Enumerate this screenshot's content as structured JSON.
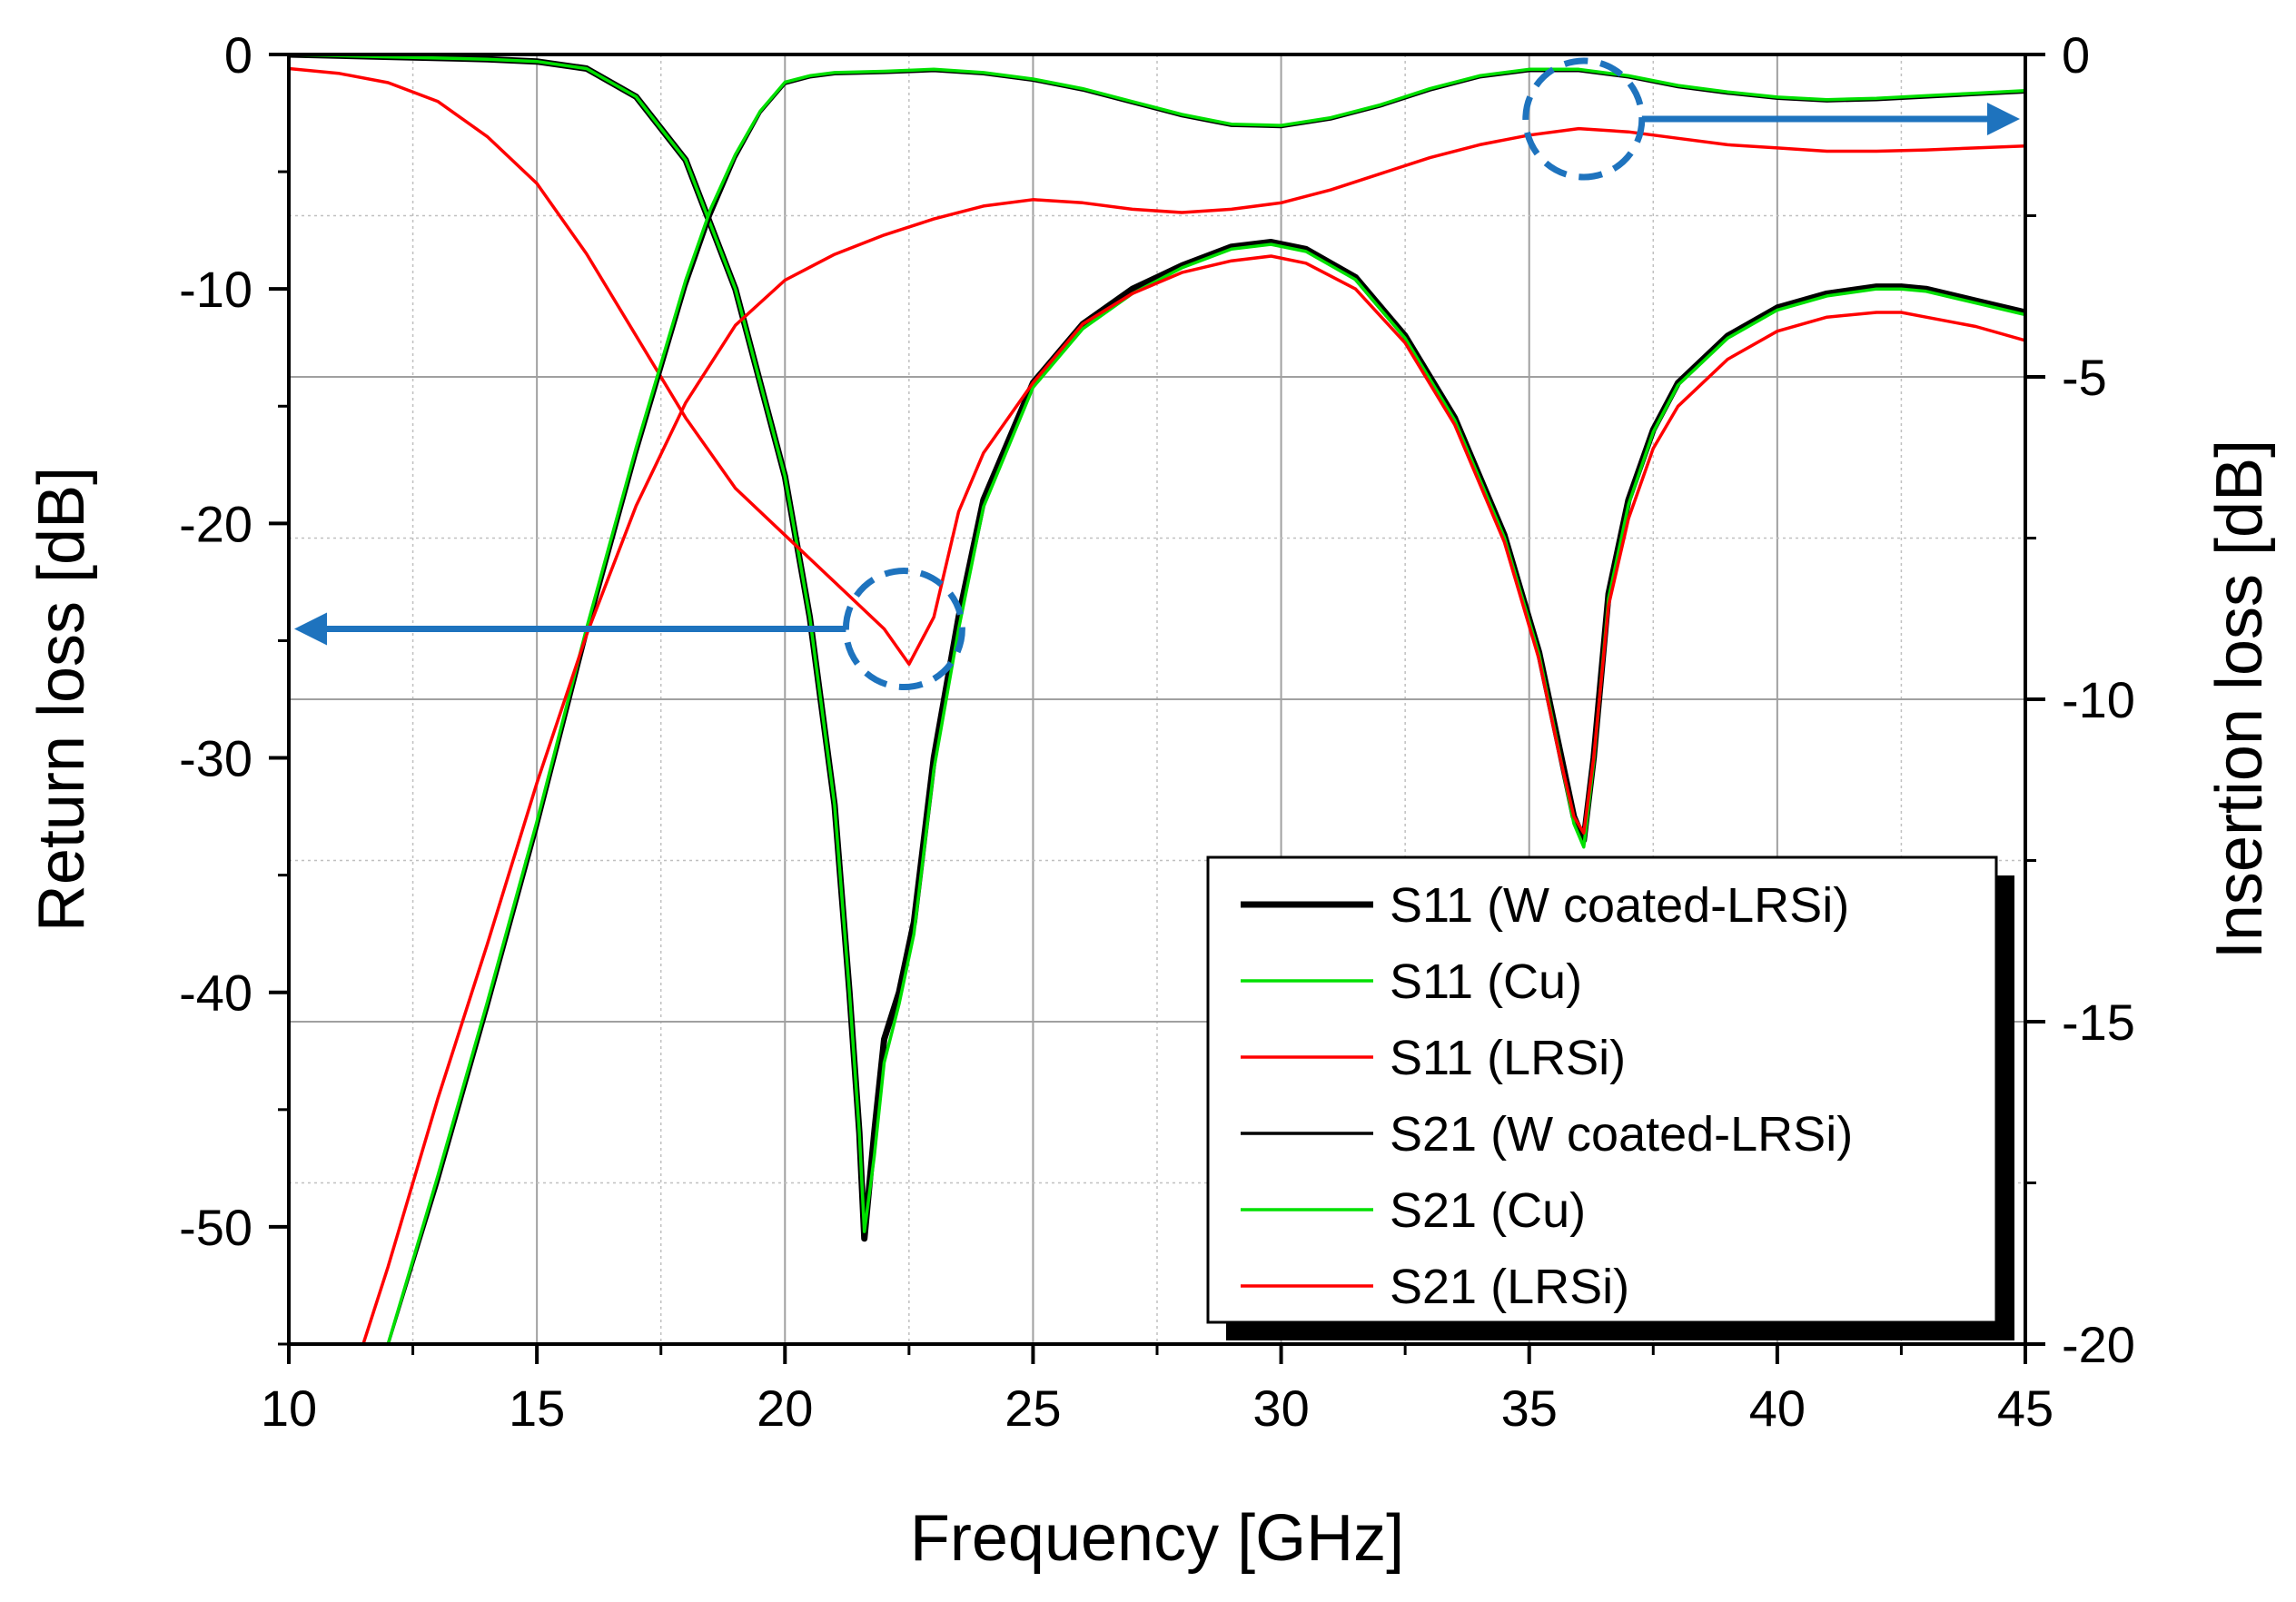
{
  "chart_data": {
    "type": "line",
    "xlabel": "Frequency [GHz]",
    "ylabel_left": "Return loss [dB]",
    "ylabel_right": "Insertion loss [dB]",
    "xlim": [
      10,
      45
    ],
    "ylim_left": [
      -55,
      0
    ],
    "ylim_right": [
      -20,
      0
    ],
    "x_ticks": [
      10,
      15,
      20,
      25,
      30,
      35,
      40,
      45
    ],
    "y_left_ticks": [
      0,
      -10,
      -20,
      -30,
      -40,
      -50
    ],
    "y_right_ticks": [
      0,
      -5,
      -10,
      -15,
      -20
    ],
    "grid": true,
    "legend_position": "bottom-right",
    "series": [
      {
        "name": "S11 (W coated-LRSi)",
        "axis": "left",
        "color": "#000000",
        "weight": "bold",
        "x": [
          10,
          12,
          14,
          15,
          16,
          17,
          18,
          19,
          20,
          20.5,
          21,
          21.3,
          21.5,
          21.6,
          21.8,
          22,
          22.3,
          22.6,
          23,
          23.5,
          24,
          25,
          26,
          27,
          28,
          29,
          29.8,
          30.5,
          31.5,
          32.5,
          33.5,
          34.5,
          35.2,
          35.6,
          35.9,
          36.1,
          36.3,
          36.6,
          37,
          37.5,
          38,
          39,
          40,
          41,
          42,
          42.5,
          43,
          44,
          45
        ],
        "values": [
          0,
          -0.1,
          -0.2,
          -0.3,
          -0.6,
          -1.8,
          -4.5,
          -10,
          -18,
          -24,
          -32,
          -40,
          -46,
          -50.5,
          -46,
          -42,
          -40,
          -37,
          -30,
          -24,
          -19,
          -14,
          -11.5,
          -10,
          -9,
          -8.2,
          -8,
          -8.3,
          -9.5,
          -12,
          -15.5,
          -20.5,
          -25.5,
          -29.5,
          -32.5,
          -33.5,
          -30,
          -23,
          -19,
          -16,
          -14,
          -12,
          -10.8,
          -10.2,
          -9.9,
          -9.9,
          -10,
          -10.5,
          -11
        ]
      },
      {
        "name": "S11 (Cu)",
        "axis": "left",
        "color": "#00e000",
        "weight": "normal",
        "x": [
          10,
          12,
          14,
          15,
          16,
          17,
          18,
          19,
          20,
          20.5,
          21,
          21.3,
          21.5,
          21.6,
          21.8,
          22,
          22.3,
          22.6,
          23,
          23.5,
          24,
          25,
          26,
          27,
          28,
          29,
          29.8,
          30.5,
          31.5,
          32.5,
          33.5,
          34.5,
          35.2,
          35.6,
          35.9,
          36.1,
          36.3,
          36.6,
          37,
          37.5,
          38,
          39,
          40,
          41,
          42,
          42.5,
          43,
          44,
          45
        ],
        "values": [
          0,
          -0.1,
          -0.2,
          -0.3,
          -0.6,
          -1.8,
          -4.5,
          -10,
          -18,
          -24,
          -32,
          -40,
          -46,
          -50.2,
          -47,
          -43,
          -40.5,
          -37.5,
          -30.5,
          -24.5,
          -19.3,
          -14.2,
          -11.7,
          -10.2,
          -9.1,
          -8.3,
          -8.1,
          -8.4,
          -9.6,
          -12.1,
          -15.6,
          -20.6,
          -25.6,
          -29.7,
          -32.8,
          -33.8,
          -30.2,
          -23.2,
          -19.2,
          -16.1,
          -14.1,
          -12.1,
          -10.9,
          -10.3,
          -10,
          -10,
          -10.1,
          -10.6,
          -11.1
        ]
      },
      {
        "name": "S11 (LRSi)",
        "axis": "left",
        "color": "#ff0000",
        "weight": "normal",
        "x": [
          10,
          11,
          12,
          13,
          14,
          15,
          16,
          17,
          18,
          19,
          20,
          21,
          22,
          22.5,
          23,
          23.5,
          24,
          25,
          26,
          27,
          28,
          29,
          29.8,
          30.5,
          31.5,
          32.5,
          33.5,
          34.5,
          35.2,
          35.6,
          35.9,
          36.1,
          36.3,
          36.6,
          37,
          37.5,
          38,
          39,
          40,
          41,
          42,
          42.5,
          43,
          44,
          45
        ],
        "values": [
          -0.6,
          -0.8,
          -1.2,
          -2,
          -3.5,
          -5.5,
          -8.5,
          -12,
          -15.5,
          -18.5,
          -20.5,
          -22.5,
          -24.5,
          -26,
          -24,
          -19.5,
          -17,
          -14,
          -11.5,
          -10.2,
          -9.3,
          -8.8,
          -8.6,
          -8.9,
          -10,
          -12.3,
          -15.8,
          -20.8,
          -25.8,
          -29.8,
          -32.5,
          -33.2,
          -30,
          -23.5,
          -19.8,
          -16.8,
          -15,
          -13,
          -11.8,
          -11.2,
          -11,
          -11,
          -11.2,
          -11.6,
          -12.2
        ]
      },
      {
        "name": "S21 (W coated-LRSi)",
        "axis": "right",
        "color": "#000000",
        "weight": "normal",
        "x": [
          12,
          13,
          14,
          15,
          16,
          17,
          18,
          18.5,
          19,
          19.5,
          20,
          20.5,
          21,
          22,
          23,
          24,
          25,
          26,
          27,
          28,
          29,
          30,
          31,
          32,
          33,
          34,
          35,
          36,
          37,
          38,
          39,
          40,
          41,
          42,
          43,
          44,
          45
        ],
        "values": [
          -20,
          -17.5,
          -14.8,
          -12,
          -9,
          -6.2,
          -3.6,
          -2.5,
          -1.6,
          -0.9,
          -0.45,
          -0.35,
          -0.3,
          -0.28,
          -0.25,
          -0.3,
          -0.4,
          -0.55,
          -0.75,
          -0.95,
          -1.1,
          -1.12,
          -1.0,
          -0.8,
          -0.55,
          -0.35,
          -0.25,
          -0.25,
          -0.35,
          -0.5,
          -0.6,
          -0.68,
          -0.72,
          -0.7,
          -0.66,
          -0.62,
          -0.58
        ]
      },
      {
        "name": "S21 (Cu)",
        "axis": "right",
        "color": "#00e000",
        "weight": "normal",
        "x": [
          12,
          13,
          14,
          15,
          16,
          17,
          18,
          18.5,
          19,
          19.5,
          20,
          20.5,
          21,
          22,
          23,
          24,
          25,
          26,
          27,
          28,
          29,
          30,
          31,
          32,
          33,
          34,
          35,
          36,
          37,
          38,
          39,
          40,
          41,
          42,
          43,
          44,
          45
        ],
        "values": [
          -20,
          -17.4,
          -14.7,
          -11.9,
          -8.9,
          -6.1,
          -3.5,
          -2.4,
          -1.55,
          -0.88,
          -0.43,
          -0.33,
          -0.28,
          -0.26,
          -0.23,
          -0.28,
          -0.38,
          -0.53,
          -0.73,
          -0.93,
          -1.08,
          -1.1,
          -0.98,
          -0.78,
          -0.53,
          -0.33,
          -0.23,
          -0.23,
          -0.33,
          -0.48,
          -0.58,
          -0.66,
          -0.7,
          -0.68,
          -0.64,
          -0.6,
          -0.56
        ]
      },
      {
        "name": "S21 (LRSi)",
        "axis": "right",
        "color": "#ff0000",
        "weight": "normal",
        "x": [
          11.5,
          12,
          13,
          14,
          15,
          16,
          17,
          18,
          19,
          20,
          21,
          22,
          23,
          24,
          25,
          26,
          27,
          28,
          29,
          30,
          31,
          32,
          33,
          34,
          35,
          36,
          37,
          38,
          39,
          40,
          41,
          42,
          43,
          44,
          45
        ],
        "values": [
          -20,
          -18.8,
          -16.2,
          -13.8,
          -11.3,
          -9,
          -7,
          -5.4,
          -4.2,
          -3.5,
          -3.1,
          -2.8,
          -2.55,
          -2.35,
          -2.25,
          -2.3,
          -2.4,
          -2.45,
          -2.4,
          -2.3,
          -2.1,
          -1.85,
          -1.6,
          -1.4,
          -1.25,
          -1.15,
          -1.2,
          -1.3,
          -1.4,
          -1.45,
          -1.5,
          -1.5,
          -1.48,
          -1.45,
          -1.42
        ]
      }
    ],
    "annotations": [
      {
        "name": "return-loss-marker",
        "target_series": "S11 (LRSi)",
        "center": [
          22.4,
          -24.5
        ],
        "arrow_to": "left axis",
        "color": "#1e73be"
      },
      {
        "name": "insertion-loss-marker",
        "target_series": "S21 (LRSi)",
        "center": [
          36.1,
          -1.0
        ],
        "arrow_to": "right axis",
        "color": "#1e73be"
      }
    ]
  }
}
